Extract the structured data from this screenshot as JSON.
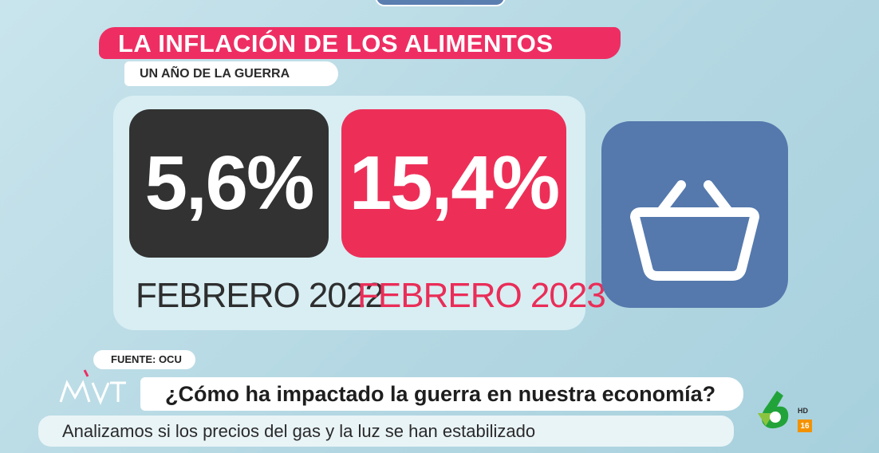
{
  "graphic": {
    "title": "LA INFLACIÓN DE LOS ALIMENTOS",
    "subtitle": "UN AÑO DE LA GUERRA",
    "stats": [
      {
        "value": "5,6%",
        "label": "FEBRERO 2022",
        "color": "#323232"
      },
      {
        "value": "15,4%",
        "label": "FEBRERO 2023",
        "color": "#ed2f58"
      }
    ],
    "icon": "shopping-basket-icon",
    "source": "FUENTE: OCU"
  },
  "lower_third": {
    "program_logo": "MVT",
    "headline": "¿Cómo ha impactado la guerra en nuestra economía?",
    "subheadline": "Analizamos si los precios del gas y la luz se han estabilizado"
  },
  "channel": {
    "logo": "laSexta-logo",
    "hd": "HD",
    "age_rating": "16"
  },
  "colors": {
    "accent_pink": "#ee2e63",
    "dark": "#323232",
    "basket_blue": "#5579ad",
    "background": "#b4d8e3"
  }
}
